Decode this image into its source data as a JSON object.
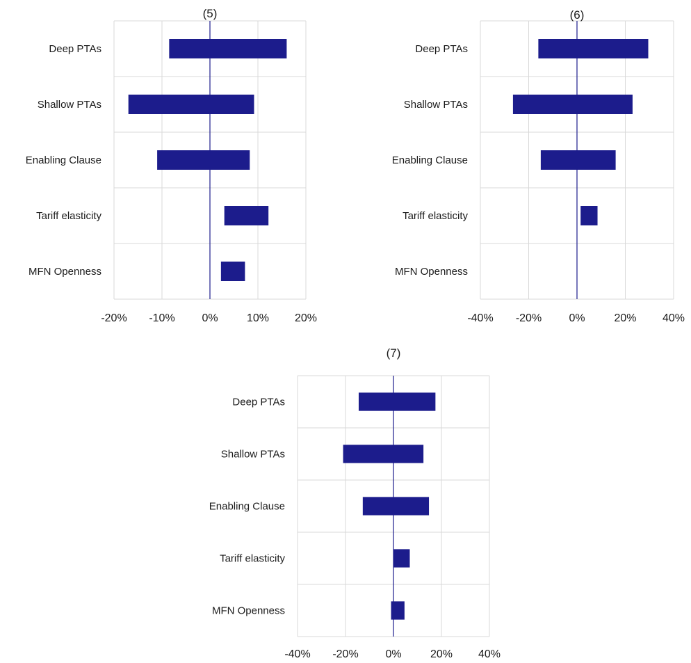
{
  "chart_data": [
    {
      "type": "bar",
      "orientation": "horizontal",
      "title": "(5)",
      "categories": [
        "Deep PTAs",
        "Shallow PTAs",
        "Enabling Clause",
        "Tariff elasticity",
        "MFN Openness"
      ],
      "ranges": [
        [
          -8.5,
          16.0
        ],
        [
          -17.0,
          9.2
        ],
        [
          -11.0,
          8.3
        ],
        [
          3.0,
          12.2
        ],
        [
          2.3,
          7.3
        ]
      ],
      "xlim": [
        -20,
        20
      ],
      "xticks": [
        -20,
        -10,
        0,
        10,
        20
      ],
      "xtick_labels": [
        "-20%",
        "-10%",
        "0%",
        "10%",
        "20%"
      ],
      "grid": true,
      "color": "#1c1c8c"
    },
    {
      "type": "bar",
      "orientation": "horizontal",
      "title": "(6)",
      "categories": [
        "Deep PTAs",
        "Shallow PTAs",
        "Enabling Clause",
        "Tariff elasticity",
        "MFN Openness"
      ],
      "ranges": [
        [
          -16.0,
          29.5
        ],
        [
          -26.5,
          23.0
        ],
        [
          -15.0,
          16.0
        ],
        [
          1.5,
          8.5
        ],
        null
      ],
      "xlim": [
        -40,
        40
      ],
      "xticks": [
        -40,
        -20,
        0,
        20,
        40
      ],
      "xtick_labels": [
        "-40%",
        "-20%",
        "0%",
        "20%",
        "40%"
      ],
      "grid": true,
      "color": "#1c1c8c"
    },
    {
      "type": "bar",
      "orientation": "horizontal",
      "title": "(7)",
      "categories": [
        "Deep PTAs",
        "Shallow PTAs",
        "Enabling Clause",
        "Tariff elasticity",
        "MFN Openness"
      ],
      "ranges": [
        [
          -14.5,
          17.5
        ],
        [
          -21.0,
          12.5
        ],
        [
          -12.8,
          14.8
        ],
        [
          0.0,
          6.8
        ],
        [
          -1.0,
          4.6
        ]
      ],
      "xlim": [
        -40,
        40
      ],
      "xticks": [
        -40,
        -20,
        0,
        20,
        40
      ],
      "xtick_labels": [
        "-40%",
        "-20%",
        "0%",
        "20%",
        "40%"
      ],
      "grid": true,
      "color": "#1c1c8c"
    }
  ]
}
